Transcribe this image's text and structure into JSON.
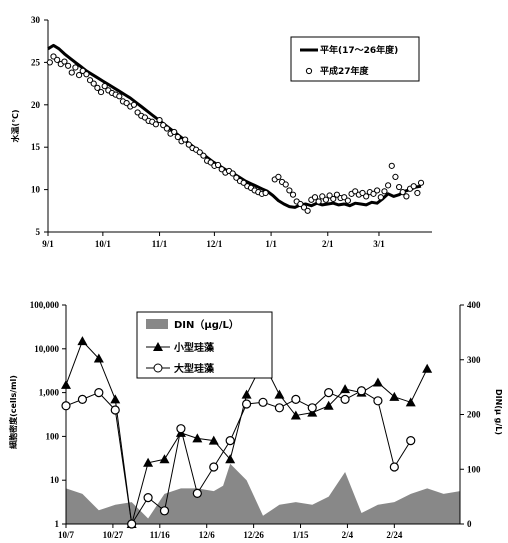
{
  "chart_data": [
    {
      "type": "line",
      "ylabel": "水温(℃)",
      "ylim": [
        5,
        30
      ],
      "yticks": [
        5,
        10,
        15,
        20,
        25,
        30
      ],
      "xtick_labels": [
        "9/1",
        "10/1",
        "11/1",
        "12/1",
        "1/1",
        "2/1",
        "3/1"
      ],
      "x_range_days": [
        0,
        210
      ],
      "xtick_days": [
        0,
        30,
        61,
        91,
        122,
        153,
        181
      ],
      "grid": false,
      "legend_position": "top-right",
      "series": [
        {
          "name": "平年(17～26年度)",
          "style": "thick-line",
          "color": "#000000",
          "points": [
            [
              0,
              26.6
            ],
            [
              3,
              27.0
            ],
            [
              6,
              26.6
            ],
            [
              9,
              26.0
            ],
            [
              12,
              25.5
            ],
            [
              15,
              25.0
            ],
            [
              18,
              24.5
            ],
            [
              21,
              24.0
            ],
            [
              24,
              23.6
            ],
            [
              27,
              23.2
            ],
            [
              30,
              22.8
            ],
            [
              33,
              22.4
            ],
            [
              36,
              22.0
            ],
            [
              39,
              21.6
            ],
            [
              42,
              21.2
            ],
            [
              45,
              20.8
            ],
            [
              48,
              20.3
            ],
            [
              51,
              19.8
            ],
            [
              54,
              19.3
            ],
            [
              57,
              18.8
            ],
            [
              60,
              18.3
            ],
            [
              63,
              17.8
            ],
            [
              66,
              17.3
            ],
            [
              69,
              16.8
            ],
            [
              72,
              16.3
            ],
            [
              75,
              15.8
            ],
            [
              78,
              15.3
            ],
            [
              81,
              14.8
            ],
            [
              84,
              14.3
            ],
            [
              87,
              13.8
            ],
            [
              90,
              13.3
            ],
            [
              93,
              12.9
            ],
            [
              96,
              12.5
            ],
            [
              99,
              12.1
            ],
            [
              102,
              11.8
            ],
            [
              105,
              11.4
            ],
            [
              108,
              11.0
            ],
            [
              111,
              10.7
            ],
            [
              114,
              10.4
            ],
            [
              117,
              10.1
            ],
            [
              120,
              9.8
            ],
            [
              123,
              9.3
            ],
            [
              126,
              8.7
            ],
            [
              129,
              8.3
            ],
            [
              132,
              8.0
            ],
            [
              135,
              7.9
            ],
            [
              138,
              8.2
            ],
            [
              141,
              8.3
            ],
            [
              144,
              8.1
            ],
            [
              147,
              8.4
            ],
            [
              150,
              8.2
            ],
            [
              153,
              8.3
            ],
            [
              156,
              8.4
            ],
            [
              159,
              8.2
            ],
            [
              162,
              8.3
            ],
            [
              165,
              8.1
            ],
            [
              168,
              8.4
            ],
            [
              171,
              8.3
            ],
            [
              174,
              8.2
            ],
            [
              177,
              8.5
            ],
            [
              180,
              8.4
            ],
            [
              183,
              8.9
            ],
            [
              186,
              9.5
            ],
            [
              189,
              9.2
            ],
            [
              192,
              9.4
            ],
            [
              195,
              9.8
            ],
            [
              198,
              10.0
            ],
            [
              201,
              10.3
            ],
            [
              204,
              10.4
            ]
          ]
        },
        {
          "name": "平成27年度",
          "style": "open-circle",
          "color": "#000000",
          "points": [
            [
              1,
              25.0
            ],
            [
              3,
              25.7
            ],
            [
              5,
              25.3
            ],
            [
              7,
              24.8
            ],
            [
              9,
              25.1
            ],
            [
              11,
              24.6
            ],
            [
              13,
              23.8
            ],
            [
              15,
              24.4
            ],
            [
              17,
              23.5
            ],
            [
              19,
              24.0
            ],
            [
              21,
              23.6
            ],
            [
              23,
              22.9
            ],
            [
              25,
              22.5
            ],
            [
              27,
              22.0
            ],
            [
              29,
              21.5
            ],
            [
              31,
              22.2
            ],
            [
              33,
              21.7
            ],
            [
              35,
              21.4
            ],
            [
              37,
              21.2
            ],
            [
              39,
              21.0
            ],
            [
              41,
              20.4
            ],
            [
              43,
              20.2
            ],
            [
              45,
              19.8
            ],
            [
              47,
              20.0
            ],
            [
              49,
              19.1
            ],
            [
              51,
              18.7
            ],
            [
              53,
              18.5
            ],
            [
              55,
              18.1
            ],
            [
              57,
              18.0
            ],
            [
              59,
              17.7
            ],
            [
              61,
              18.2
            ],
            [
              63,
              17.6
            ],
            [
              65,
              17.2
            ],
            [
              67,
              16.6
            ],
            [
              69,
              16.8
            ],
            [
              71,
              16.2
            ],
            [
              73,
              15.7
            ],
            [
              75,
              15.9
            ],
            [
              77,
              15.3
            ],
            [
              79,
              14.9
            ],
            [
              81,
              14.7
            ],
            [
              83,
              14.4
            ],
            [
              85,
              14.0
            ],
            [
              87,
              13.4
            ],
            [
              89,
              13.2
            ],
            [
              91,
              12.8
            ],
            [
              93,
              12.9
            ],
            [
              95,
              12.4
            ],
            [
              97,
              12.0
            ],
            [
              99,
              12.2
            ],
            [
              101,
              11.9
            ],
            [
              103,
              11.4
            ],
            [
              105,
              11.0
            ],
            [
              107,
              10.8
            ],
            [
              109,
              10.4
            ],
            [
              111,
              10.2
            ],
            [
              113,
              9.9
            ],
            [
              115,
              9.7
            ],
            [
              117,
              9.5
            ],
            [
              119,
              9.6
            ],
            [
              124,
              11.2
            ],
            [
              126,
              11.5
            ],
            [
              128,
              10.9
            ],
            [
              130,
              10.6
            ],
            [
              132,
              9.9
            ],
            [
              134,
              9.4
            ],
            [
              136,
              8.6
            ],
            [
              138,
              8.3
            ],
            [
              140,
              7.9
            ],
            [
              142,
              7.5
            ],
            [
              144,
              8.8
            ],
            [
              146,
              9.1
            ],
            [
              148,
              8.6
            ],
            [
              150,
              9.2
            ],
            [
              152,
              8.8
            ],
            [
              154,
              9.3
            ],
            [
              156,
              8.9
            ],
            [
              158,
              9.4
            ],
            [
              160,
              9.0
            ],
            [
              162,
              9.1
            ],
            [
              164,
              8.7
            ],
            [
              166,
              9.5
            ],
            [
              168,
              9.8
            ],
            [
              170,
              9.4
            ],
            [
              172,
              9.6
            ],
            [
              174,
              9.2
            ],
            [
              176,
              9.7
            ],
            [
              178,
              9.5
            ],
            [
              180,
              9.9
            ],
            [
              182,
              9.1
            ],
            [
              184,
              9.8
            ],
            [
              186,
              10.5
            ],
            [
              188,
              12.8
            ],
            [
              190,
              11.5
            ],
            [
              192,
              10.3
            ],
            [
              194,
              9.7
            ],
            [
              196,
              9.2
            ],
            [
              198,
              10.1
            ],
            [
              200,
              10.4
            ],
            [
              202,
              9.6
            ],
            [
              204,
              10.8
            ]
          ]
        }
      ]
    },
    {
      "type": "line",
      "ylabel_left": "細胞密度(cells/ml)",
      "ylabel_right": "DIN(μ g/L)",
      "yscale_left": "log",
      "ylim_left": [
        1,
        100000
      ],
      "yticks_left": [
        "1",
        "10",
        "100",
        "1,000",
        "10,000",
        "100,000"
      ],
      "ylim_right": [
        0,
        400
      ],
      "yticks_right": [
        "0",
        "100",
        "200",
        "300",
        "400"
      ],
      "xtick_labels": [
        "10/7",
        "10/27",
        "11/16",
        "12/6",
        "12/26",
        "1/15",
        "2/4",
        "2/24"
      ],
      "x_range_days": [
        0,
        168
      ],
      "xtick_days": [
        0,
        20,
        40,
        60,
        80,
        100,
        120,
        140
      ],
      "grid": false,
      "legend_position": "top-center",
      "series": [
        {
          "name": "DIN（μg/L）",
          "style": "area",
          "axis": "right",
          "color": "#888888",
          "points": [
            [
              0,
              65
            ],
            [
              7,
              55
            ],
            [
              14,
              25
            ],
            [
              21,
              35
            ],
            [
              28,
              40
            ],
            [
              35,
              10
            ],
            [
              42,
              55
            ],
            [
              49,
              65
            ],
            [
              56,
              65
            ],
            [
              63,
              60
            ],
            [
              67,
              70
            ],
            [
              70,
              110
            ],
            [
              77,
              80
            ],
            [
              84,
              15
            ],
            [
              91,
              35
            ],
            [
              98,
              40
            ],
            [
              105,
              35
            ],
            [
              112,
              50
            ],
            [
              119,
              95
            ],
            [
              126,
              20
            ],
            [
              133,
              35
            ],
            [
              140,
              40
            ],
            [
              147,
              55
            ],
            [
              154,
              65
            ],
            [
              161,
              55
            ],
            [
              168,
              60
            ]
          ]
        },
        {
          "name": "小型珪藻",
          "style": "filled-triangle",
          "axis": "left",
          "color": "#000000",
          "points": [
            [
              0,
              1500
            ],
            [
              7,
              15000
            ],
            [
              14,
              6000
            ],
            [
              21,
              700
            ],
            [
              28,
              1
            ],
            [
              35,
              25
            ],
            [
              42,
              30
            ],
            [
              49,
              120
            ],
            [
              56,
              90
            ],
            [
              63,
              80
            ],
            [
              70,
              30
            ],
            [
              77,
              900
            ],
            [
              84,
              5000
            ],
            [
              91,
              900
            ],
            [
              98,
              300
            ],
            [
              105,
              350
            ],
            [
              112,
              500
            ],
            [
              119,
              1200
            ],
            [
              126,
              1000
            ],
            [
              133,
              1700
            ],
            [
              140,
              800
            ],
            [
              147,
              600
            ],
            [
              154,
              3500
            ]
          ]
        },
        {
          "name": "大型珪藻",
          "style": "open-circle",
          "axis": "left",
          "color": "#000000",
          "points": [
            [
              0,
              500
            ],
            [
              7,
              700
            ],
            [
              14,
              1000
            ],
            [
              21,
              400
            ],
            [
              28,
              1
            ],
            [
              35,
              4
            ],
            [
              42,
              2
            ],
            [
              49,
              150
            ],
            [
              56,
              5
            ],
            [
              63,
              20
            ],
            [
              70,
              80
            ],
            [
              77,
              550
            ],
            [
              84,
              600
            ],
            [
              91,
              450
            ],
            [
              98,
              700
            ],
            [
              105,
              450
            ],
            [
              112,
              1000
            ],
            [
              119,
              700
            ],
            [
              126,
              1100
            ],
            [
              133,
              650
            ],
            [
              140,
              20
            ],
            [
              147,
              80
            ]
          ]
        }
      ]
    }
  ]
}
